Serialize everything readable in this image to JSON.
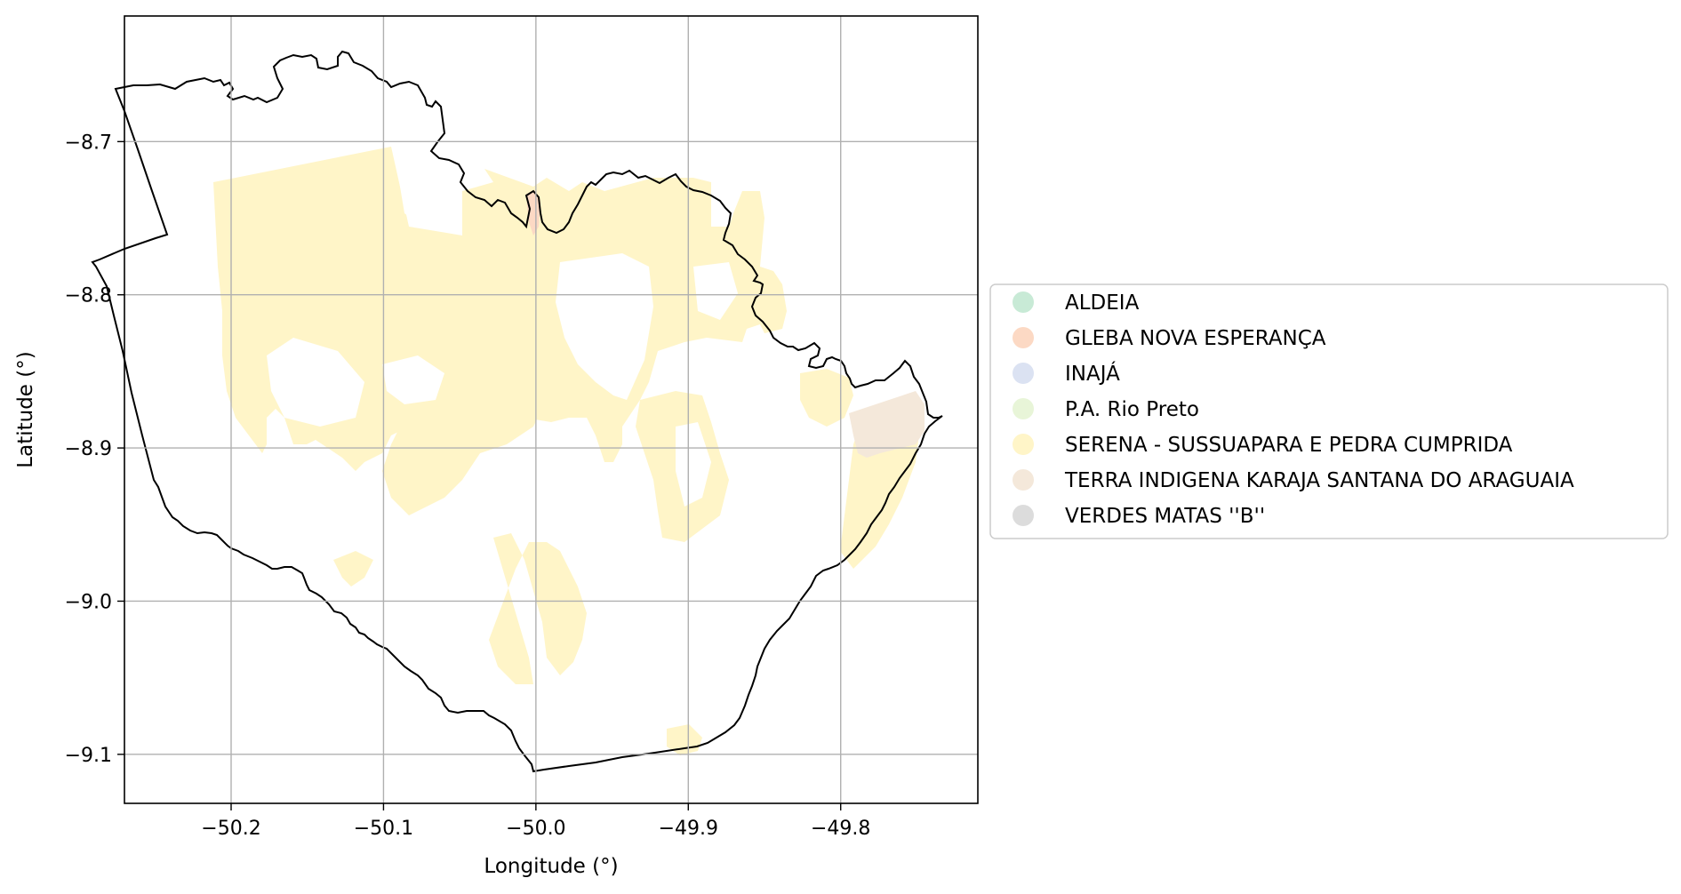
{
  "map": {
    "xlabel": "Longitude (°)",
    "ylabel": "Latitude (°)",
    "xlim": [
      -50.27,
      -49.71
    ],
    "ylim": [
      -9.132,
      -8.618
    ],
    "grid": true,
    "x_ticks": [
      {
        "value": -50.2,
        "label": "−50.2"
      },
      {
        "value": -50.1,
        "label": "−50.1"
      },
      {
        "value": -50.0,
        "label": "−50.0"
      },
      {
        "value": -49.9,
        "label": "−49.9"
      },
      {
        "value": -49.8,
        "label": "−49.8"
      }
    ],
    "y_ticks": [
      {
        "value": -8.7,
        "label": "−8.7"
      },
      {
        "value": -8.8,
        "label": "−8.8"
      },
      {
        "value": -8.9,
        "label": "−8.9"
      },
      {
        "value": -9.0,
        "label": "−9.0"
      },
      {
        "value": -9.1,
        "label": "−9.1"
      }
    ]
  },
  "legend": {
    "placement": "center-right-outside",
    "items": [
      {
        "label": "ALDEIA",
        "color": "#c8ead6"
      },
      {
        "label": "GLEBA NOVA ESPERANÇA",
        "color": "#fcd9c4"
      },
      {
        "label": "INAJÁ",
        "color": "#dbe2f2"
      },
      {
        "label": "P.A. Rio Preto",
        "color": "#e8f5d8"
      },
      {
        "label": "SERENA - SUSSUAPARA E PEDRA CUMPRIDA",
        "color": "#fff5c8"
      },
      {
        "label": "TERRA INDIGENA KARAJA SANTANA DO ARAGUAIA",
        "color": "#f4e8da"
      },
      {
        "label": "VERDES MATAS ''B''",
        "color": "#dcdcdc"
      }
    ]
  },
  "colors": {
    "boundary": "#000000",
    "grid": "#b0b0b0",
    "serena_fill": "#fff5c8",
    "karaja_fill": "#f4e8da",
    "gleba_fill": "#fcd9c4"
  }
}
